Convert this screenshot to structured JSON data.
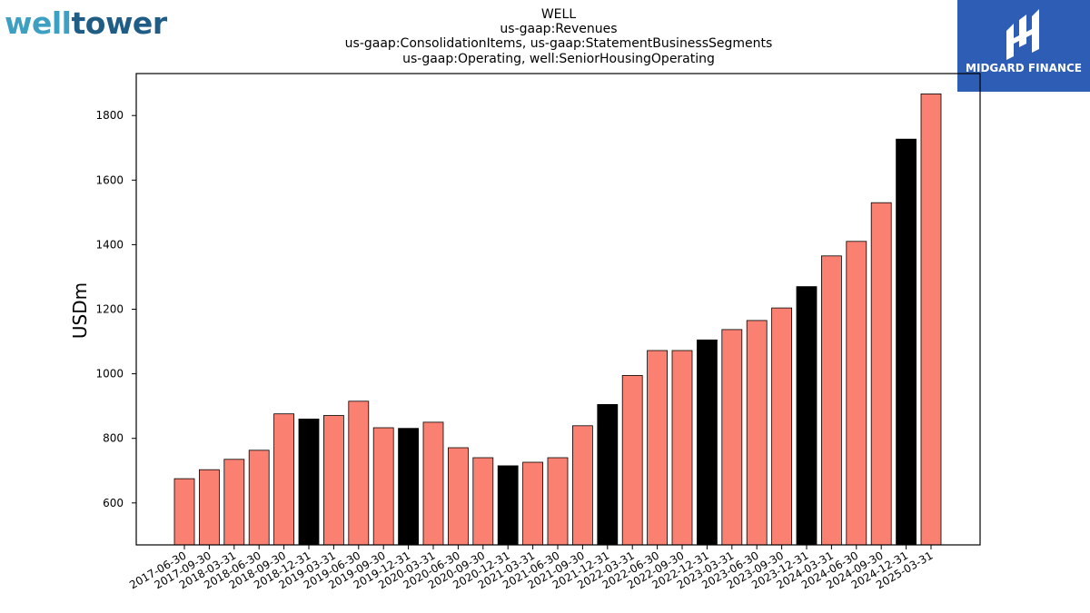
{
  "logos": {
    "left": {
      "part1": "well",
      "part2": "tower"
    },
    "right": {
      "text": "MIDGARD FINANCE"
    }
  },
  "chart_data": {
    "type": "bar",
    "title_lines": [
      "WELL",
      "us-gaap:Revenues",
      "us-gaap:ConsolidationItems, us-gaap:StatementBusinessSegments",
      "us-gaap:Operating, well:SeniorHousingOperating"
    ],
    "xlabel": "",
    "ylabel": "USDm",
    "ylim": [
      470,
      1930
    ],
    "yticks": [
      600,
      800,
      1000,
      1200,
      1400,
      1600,
      1800
    ],
    "grid": false,
    "colors": {
      "quarter": "#fa8072",
      "year_end": "#000000"
    },
    "categories": [
      "2017-06-30",
      "2017-09-30",
      "2018-03-31",
      "2018-06-30",
      "2018-09-30",
      "2018-12-31",
      "2019-03-31",
      "2019-06-30",
      "2019-09-30",
      "2019-12-31",
      "2020-03-31",
      "2020-06-30",
      "2020-09-30",
      "2020-12-31",
      "2021-03-31",
      "2021-06-30",
      "2021-09-30",
      "2021-12-31",
      "2022-03-31",
      "2022-06-30",
      "2022-09-30",
      "2022-12-31",
      "2023-03-31",
      "2023-06-30",
      "2023-09-30",
      "2023-12-31",
      "2024-03-31",
      "2024-06-30",
      "2024-09-30",
      "2024-12-31",
      "2025-03-31"
    ],
    "values": [
      675,
      703,
      735,
      763,
      876,
      860,
      871,
      915,
      833,
      831,
      850,
      771,
      740,
      715,
      726,
      740,
      839,
      905,
      995,
      1072,
      1072,
      1105,
      1137,
      1165,
      1204,
      1270,
      1365,
      1410,
      1530,
      1727,
      1867
    ],
    "year_end": [
      false,
      false,
      false,
      false,
      false,
      true,
      false,
      false,
      false,
      true,
      false,
      false,
      false,
      true,
      false,
      false,
      false,
      true,
      false,
      false,
      false,
      true,
      false,
      false,
      false,
      true,
      false,
      false,
      false,
      true,
      false
    ]
  }
}
